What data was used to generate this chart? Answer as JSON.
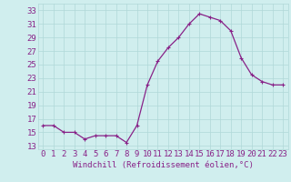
{
  "x": [
    0,
    1,
    2,
    3,
    4,
    5,
    6,
    7,
    8,
    9,
    10,
    11,
    12,
    13,
    14,
    15,
    16,
    17,
    18,
    19,
    20,
    21,
    22,
    23
  ],
  "y": [
    16,
    16,
    15,
    15,
    14,
    14.5,
    14.5,
    14.5,
    13.5,
    16,
    22,
    25.5,
    27.5,
    29,
    31,
    32.5,
    32,
    31.5,
    30,
    26,
    23.5,
    22.5,
    22,
    22
  ],
  "line_color": "#882288",
  "marker": "+",
  "xlabel": "Windchill (Refroidissement éolien,°C)",
  "yticks": [
    13,
    15,
    17,
    19,
    21,
    23,
    25,
    27,
    29,
    31,
    33
  ],
  "xticks": [
    0,
    1,
    2,
    3,
    4,
    5,
    6,
    7,
    8,
    9,
    10,
    11,
    12,
    13,
    14,
    15,
    16,
    17,
    18,
    19,
    20,
    21,
    22,
    23
  ],
  "ylim": [
    12.5,
    34.0
  ],
  "xlim": [
    -0.5,
    23.5
  ],
  "bg_color": "#d0eeee",
  "grid_color": "#b0d8d8",
  "tick_color": "#882288",
  "label_color": "#882288",
  "font_size": 6.5
}
